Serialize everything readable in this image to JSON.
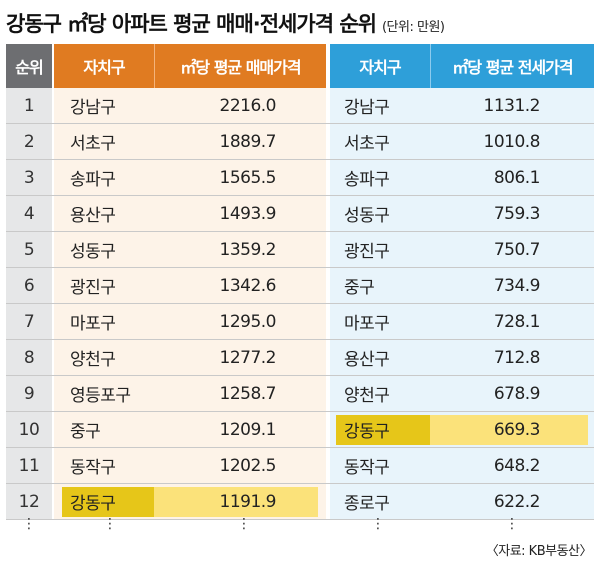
{
  "title": "강동구 ㎡당 아파트 평균 매매·전세가격 순위",
  "unit": "(단위: 만원)",
  "headers": {
    "rank": "순위",
    "district_left": "자치구",
    "sale_price": "㎡당 평균 매매가격",
    "district_right": "자치구",
    "jeonse_price": "㎡당 평균 전세가격"
  },
  "rows": [
    {
      "rank": "1",
      "sale_district": "강남구",
      "sale_price": "2216.0",
      "jeonse_district": "강남구",
      "jeonse_price": "1131.2"
    },
    {
      "rank": "2",
      "sale_district": "서초구",
      "sale_price": "1889.7",
      "jeonse_district": "서초구",
      "jeonse_price": "1010.8"
    },
    {
      "rank": "3",
      "sale_district": "송파구",
      "sale_price": "1565.5",
      "jeonse_district": "송파구",
      "jeonse_price": "806.1"
    },
    {
      "rank": "4",
      "sale_district": "용산구",
      "sale_price": "1493.9",
      "jeonse_district": "성동구",
      "jeonse_price": "759.3"
    },
    {
      "rank": "5",
      "sale_district": "성동구",
      "sale_price": "1359.2",
      "jeonse_district": "광진구",
      "jeonse_price": "750.7"
    },
    {
      "rank": "6",
      "sale_district": "광진구",
      "sale_price": "1342.6",
      "jeonse_district": "중구",
      "jeonse_price": "734.9"
    },
    {
      "rank": "7",
      "sale_district": "마포구",
      "sale_price": "1295.0",
      "jeonse_district": "마포구",
      "jeonse_price": "728.1"
    },
    {
      "rank": "8",
      "sale_district": "양천구",
      "sale_price": "1277.2",
      "jeonse_district": "용산구",
      "jeonse_price": "712.8"
    },
    {
      "rank": "9",
      "sale_district": "영등포구",
      "sale_price": "1258.7",
      "jeonse_district": "양천구",
      "jeonse_price": "678.9"
    },
    {
      "rank": "10",
      "sale_district": "중구",
      "sale_price": "1209.1",
      "jeonse_district": "강동구",
      "jeonse_price": "669.3"
    },
    {
      "rank": "11",
      "sale_district": "동작구",
      "sale_price": "1202.5",
      "jeonse_district": "동작구",
      "jeonse_price": "648.2"
    },
    {
      "rank": "12",
      "sale_district": "강동구",
      "sale_price": "1191.9",
      "jeonse_district": "종로구",
      "jeonse_price": "622.2"
    }
  ],
  "highlight": {
    "sale_rank": "12",
    "jeonse_rank": "10"
  },
  "ellipsis": "⋮",
  "source": "〈자료: KB부동산〉",
  "colors": {
    "sale_header": "#e07b21",
    "jeonse_header": "#2e9fd9",
    "rank_header": "#6d6e71",
    "highlight": "#fbe27a",
    "highlight_district": "#e6c619"
  }
}
